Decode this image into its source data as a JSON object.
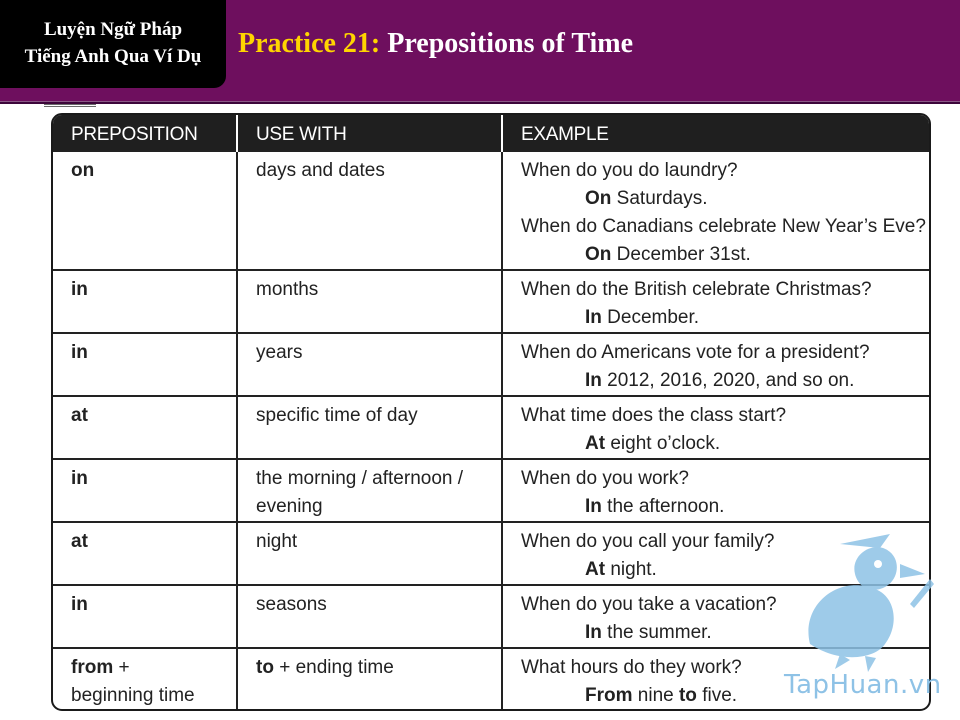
{
  "header": {
    "corner_line1": "Luyện Ngữ Pháp",
    "corner_line2": "Tiếng Anh Qua Ví Dụ",
    "title_prefix": "Practice 21:",
    "title_main": "Prepositions of Time"
  },
  "table": {
    "columns": [
      "PREPOSITION",
      "USE WITH",
      "EXAMPLE"
    ],
    "rows": [
      {
        "prep": "on",
        "use": "days and dates",
        "q1": "When do you do laundry?",
        "a1_bold": "On",
        "a1_rest": " Saturdays.",
        "q2": "When do Canadians celebrate New Year’s Eve?",
        "a2_bold": "On",
        "a2_rest": " December 31st."
      },
      {
        "prep": "in",
        "use": "months",
        "q1": "When do the British celebrate Christmas?",
        "a1_bold": "In",
        "a1_rest": " December."
      },
      {
        "prep": "in",
        "use": "years",
        "q1": "When do Americans vote for a president?",
        "a1_bold": "In",
        "a1_rest": " 2012, 2016, 2020, and so on."
      },
      {
        "prep": "at",
        "use": "specific time of day",
        "q1": "What time does the class start?",
        "a1_bold": "At",
        "a1_rest": " eight o’clock."
      },
      {
        "prep": "in",
        "use_line1": "the morning / afternoon /",
        "use_line2": "evening",
        "q1": "When do you work?",
        "a1_bold": "In",
        "a1_rest": " the afternoon."
      },
      {
        "prep": "at",
        "use": "night",
        "q1": "When do you call your family?",
        "a1_bold": "At",
        "a1_rest": " night."
      },
      {
        "prep": "in",
        "use": "seasons",
        "q1": "When do you take a vacation?",
        "a1_bold": "In",
        "a1_rest": " the summer."
      },
      {
        "prep_bold": "from",
        "prep_rest": " +",
        "prep_line2": "beginning time",
        "use_bold": "to",
        "use_rest": " + ending time",
        "q1": "What hours do they work?",
        "a1_bold": "From",
        "a1_mid": " nine ",
        "a1_bold2": "to",
        "a1_rest": " five."
      }
    ]
  },
  "logo": {
    "text": "TapHuan.vn",
    "color": "#8ec2e6"
  },
  "colors": {
    "header_bg": "#6e0f5e",
    "title_prefix": "#ffd400",
    "table_header_bg": "#1f1f1f"
  }
}
